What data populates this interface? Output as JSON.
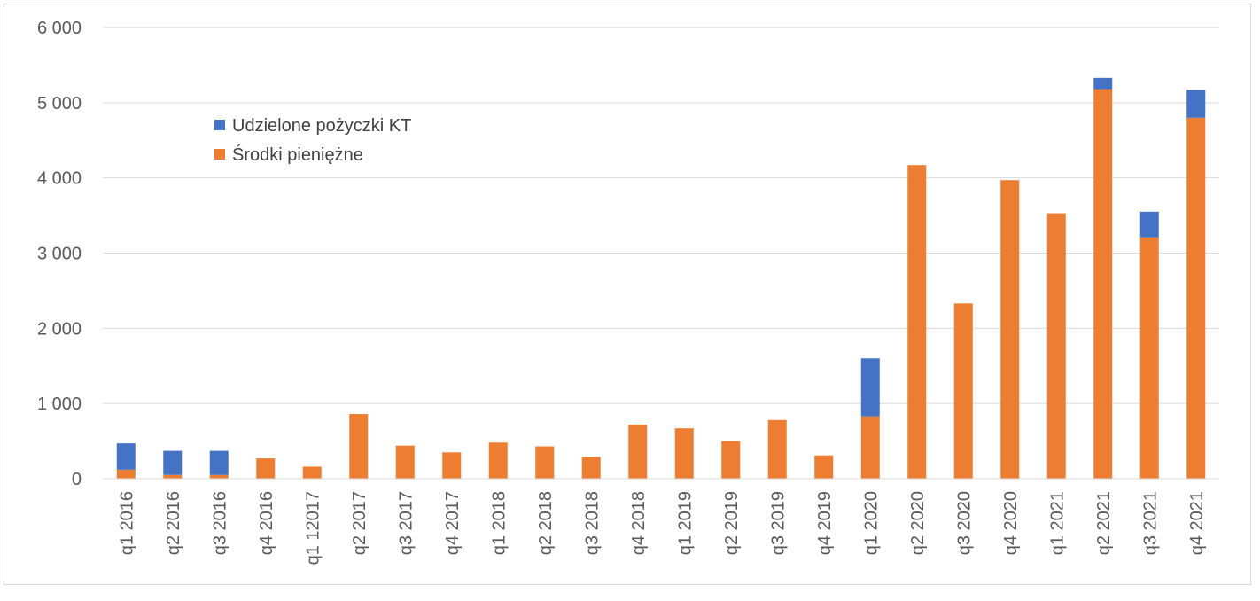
{
  "chart_data": {
    "type": "bar",
    "stacked": true,
    "title": "",
    "xlabel": "",
    "ylabel": "",
    "ylim": [
      0,
      6000
    ],
    "yticks": [
      0,
      1000,
      2000,
      3000,
      4000,
      5000,
      6000
    ],
    "ytick_labels": [
      "0",
      "1 000",
      "2 000",
      "3 000",
      "4 000",
      "5 000",
      "6 000"
    ],
    "grid": true,
    "legend_position": "top-left",
    "categories": [
      "q1 2016",
      "q2 2016",
      "q3 2016",
      "q4 2016",
      "q1 12017",
      "q2 2017",
      "q3 2017",
      "q4 2017",
      "q1 2018",
      "q2 2018",
      "q3 2018",
      "q4 2018",
      "q1 2019",
      "q2 2019",
      "q3 2019",
      "q4 2019",
      "q1 2020",
      "q2 2020",
      "q3 2020",
      "q4 2020",
      "q1 2021",
      "q2 2021",
      "q3 2021",
      "q4 2021"
    ],
    "series": [
      {
        "name": "Środki pieniężne",
        "color": "#ed7d31",
        "values": [
          120,
          50,
          50,
          270,
          160,
          860,
          440,
          350,
          480,
          430,
          290,
          720,
          670,
          500,
          780,
          310,
          830,
          4170,
          2330,
          3970,
          3530,
          5180,
          3210,
          4800
        ]
      },
      {
        "name": "Udzielone pożyczki KT",
        "color": "#4472c4",
        "values": [
          350,
          320,
          320,
          0,
          0,
          0,
          0,
          0,
          0,
          0,
          0,
          0,
          0,
          0,
          0,
          0,
          770,
          0,
          0,
          0,
          0,
          150,
          340,
          370
        ]
      }
    ],
    "legend": [
      "Udzielone pożyczki KT",
      "Środki pieniężne"
    ]
  }
}
